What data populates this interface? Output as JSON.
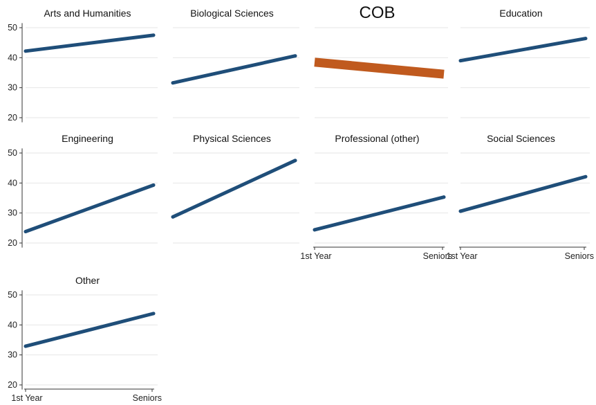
{
  "chart_data": {
    "type": "line",
    "layout": "small-multiples",
    "categories": [
      "1st Year",
      "Seniors"
    ],
    "ylim": [
      18,
      52
    ],
    "yticks": [
      20,
      30,
      40,
      50
    ],
    "grid": true,
    "highlight_panel": "COB",
    "colors": {
      "default": "#1f4e79",
      "highlight": "#c05a1e"
    },
    "panels": [
      {
        "title": "Arts and Humanities",
        "values": [
          42.2,
          47.5
        ]
      },
      {
        "title": "Biological Sciences",
        "values": [
          31.6,
          40.6
        ]
      },
      {
        "title": "COB",
        "values": [
          38.5,
          34.5
        ]
      },
      {
        "title": "Education",
        "values": [
          39.0,
          46.4
        ]
      },
      {
        "title": "Engineering",
        "values": [
          23.8,
          39.3
        ]
      },
      {
        "title": "Physical Sciences",
        "values": [
          28.7,
          47.5
        ]
      },
      {
        "title": "Professional (other)",
        "values": [
          24.4,
          35.3
        ]
      },
      {
        "title": "Social Sciences",
        "values": [
          30.6,
          42.1
        ]
      },
      {
        "title": "Other",
        "values": [
          32.9,
          43.8
        ]
      }
    ]
  }
}
